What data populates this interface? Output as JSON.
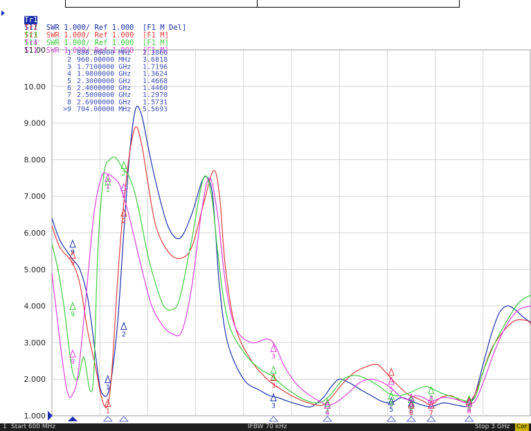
{
  "traces": [
    {
      "id": "Tr1",
      "text": "S11  SWR 1.000/ Ref 1.000  [F1 M Del]",
      "color": "#1a2fa8",
      "active": true
    },
    {
      "id": "Tr2",
      "text": "S11  SWR 1.000/ Ref 1.000  [F1 M]",
      "color": "#e03c3c",
      "active": false
    },
    {
      "id": "Tr3",
      "text": "S11  SWR 1.000/ Ref 1.000  [F1 M]",
      "color": "#3ccd3c",
      "active": false
    },
    {
      "id": "Tr4",
      "text": "S11  SWR 1.000/ Ref 1.000  [F1 M]",
      "color": "#dc3cdc",
      "active": false
    }
  ],
  "status": {
    "channel": "1",
    "start": "Start 600 MHz",
    "ifbw": "IFBW 70 kHz",
    "stop": "Stop 3 GHz",
    "cor": "Cor"
  },
  "chart_data": {
    "type": "line",
    "xlabel": "",
    "ylabel": "",
    "xlim_mhz": [
      600,
      3000
    ],
    "ylim": [
      1.0,
      11.0
    ],
    "yticks": [
      "1.000",
      "2.000",
      "3.000",
      "4.000",
      "5.000",
      "6.000",
      "7.000",
      "8.000",
      "9.000",
      "10.00",
      "11.00"
    ],
    "grid": true,
    "grid_divisions_x": 10,
    "marker_table": [
      {
        "n": "1",
        "freq": "880.00000 MHz",
        "value": "2.1866"
      },
      {
        "n": "2",
        "freq": "960.00000 MHz",
        "value": "3.6818"
      },
      {
        "n": "3",
        "freq": "1.7100000 GHz",
        "value": "1.7196"
      },
      {
        "n": "4",
        "freq": "1.9800000 GHz",
        "value": "1.3624"
      },
      {
        "n": "5",
        "freq": "2.3000000 GHz",
        "value": "1.4668"
      },
      {
        "n": "6",
        "freq": "2.4000000 GHz",
        "value": "1.4460"
      },
      {
        "n": "7",
        "freq": "2.5000000 GHz",
        "value": "1.2970"
      },
      {
        "n": "8",
        "freq": "2.6900000 GHz",
        "value": "1.5731"
      },
      {
        "n": ">9",
        "freq": "704.00000 MHz",
        "value": "5.5693"
      }
    ],
    "series": [
      {
        "color": "#1a2fa8",
        "x": [
          600,
          640,
          700,
          740,
          780,
          820,
          840,
          860,
          880,
          900,
          930,
          960,
          990,
          1020,
          1050,
          1080,
          1120,
          1180,
          1240,
          1300,
          1360,
          1400,
          1420,
          1440,
          1480,
          1560,
          1640,
          1690,
          1730,
          1780,
          1840,
          1900,
          1960,
          2000,
          2040,
          2090,
          2150,
          2200,
          2250,
          2300,
          2350,
          2400,
          2450,
          2500,
          2560,
          2620,
          2670,
          2690,
          2720,
          2760,
          2800,
          2840,
          2880,
          2920,
          2960,
          3000
        ],
        "y": [
          6.4,
          5.8,
          5.3,
          5.0,
          4.2,
          2.6,
          1.8,
          1.55,
          1.6,
          2.1,
          3.6,
          6.0,
          8.2,
          9.4,
          9.2,
          8.4,
          7.4,
          6.2,
          5.85,
          6.5,
          7.5,
          7.2,
          6.0,
          4.5,
          3.0,
          2.0,
          1.7,
          1.55,
          1.5,
          1.4,
          1.3,
          1.25,
          1.5,
          1.8,
          2.0,
          1.9,
          1.7,
          1.55,
          1.4,
          1.35,
          1.5,
          1.4,
          1.3,
          1.25,
          1.35,
          1.3,
          1.25,
          1.3,
          1.6,
          2.4,
          3.2,
          3.8,
          4.0,
          3.9,
          3.7,
          3.55
        ]
      },
      {
        "color": "#e03c3c",
        "x": [
          600,
          640,
          700,
          740,
          780,
          820,
          840,
          860,
          880,
          900,
          930,
          960,
          990,
          1020,
          1050,
          1080,
          1120,
          1180,
          1240,
          1300,
          1360,
          1410,
          1440,
          1470,
          1520,
          1600,
          1660,
          1700,
          1740,
          1800,
          1860,
          1920,
          1960,
          2000,
          2060,
          2120,
          2180,
          2230,
          2270,
          2320,
          2380,
          2420,
          2460,
          2500,
          2550,
          2600,
          2650,
          2690,
          2720,
          2760,
          2800,
          2860,
          2920,
          2980,
          3000
        ],
        "y": [
          6.2,
          5.6,
          5.2,
          4.6,
          3.3,
          2.3,
          1.7,
          1.3,
          1.3,
          2.2,
          4.8,
          6.8,
          8.2,
          8.9,
          8.4,
          7.4,
          6.2,
          5.5,
          5.3,
          5.6,
          6.8,
          7.7,
          7.0,
          5.0,
          3.4,
          2.5,
          2.1,
          1.9,
          1.75,
          1.55,
          1.4,
          1.3,
          1.3,
          1.5,
          1.9,
          2.2,
          2.35,
          2.4,
          2.2,
          1.9,
          1.6,
          1.5,
          1.4,
          1.3,
          1.5,
          1.55,
          1.4,
          1.4,
          1.6,
          2.2,
          2.8,
          3.3,
          3.6,
          3.6,
          3.5
        ]
      },
      {
        "color": "#3ccd3c",
        "x": [
          600,
          630,
          660,
          700,
          730,
          760,
          790,
          810,
          830,
          860,
          890,
          920,
          950,
          980,
          1010,
          1040,
          1080,
          1120,
          1160,
          1200,
          1240,
          1300,
          1360,
          1400,
          1430,
          1460,
          1500,
          1580,
          1650,
          1700,
          1750,
          1800,
          1860,
          1920,
          1960,
          2000,
          2060,
          2120,
          2180,
          2240,
          2290,
          2330,
          2380,
          2420,
          2470,
          2500,
          2560,
          2620,
          2680,
          2720,
          2760,
          2820,
          2880,
          2940,
          3000
        ],
        "y": [
          5.7,
          5.0,
          4.0,
          2.3,
          2.0,
          2.6,
          1.7,
          2.2,
          5.5,
          7.6,
          8.0,
          8.05,
          7.8,
          7.6,
          7.2,
          6.5,
          5.4,
          4.6,
          4.0,
          3.9,
          4.2,
          5.8,
          7.5,
          7.0,
          5.5,
          4.2,
          3.3,
          2.6,
          2.25,
          2.1,
          1.85,
          1.65,
          1.45,
          1.35,
          1.4,
          1.6,
          2.0,
          2.1,
          2.0,
          1.8,
          1.6,
          1.55,
          1.6,
          1.7,
          1.8,
          1.75,
          1.6,
          1.5,
          1.4,
          1.5,
          2.2,
          3.0,
          3.6,
          4.1,
          4.3
        ]
      },
      {
        "color": "#dc3cdc",
        "x": [
          600,
          630,
          660,
          680,
          700,
          730,
          770,
          810,
          850,
          880,
          910,
          940,
          980,
          1020,
          1060,
          1100,
          1150,
          1200,
          1250,
          1300,
          1350,
          1390,
          1430,
          1470,
          1520,
          1600,
          1680,
          1720,
          1760,
          1820,
          1880,
          1940,
          1980,
          2020,
          2080,
          2140,
          2200,
          2260,
          2300,
          2340,
          2380,
          2420,
          2460,
          2500,
          2560,
          2620,
          2680,
          2720,
          2760,
          2820,
          2880,
          2940,
          3000
        ],
        "y": [
          4.9,
          3.5,
          2.2,
          1.6,
          1.55,
          2.1,
          4.2,
          6.5,
          7.55,
          7.6,
          7.5,
          7.3,
          6.6,
          5.7,
          4.8,
          4.0,
          3.5,
          3.25,
          3.3,
          4.5,
          6.6,
          7.5,
          6.5,
          4.6,
          3.4,
          3.0,
          3.1,
          2.9,
          2.4,
          1.9,
          1.6,
          1.4,
          1.3,
          1.35,
          1.6,
          1.9,
          2.0,
          1.9,
          1.75,
          1.55,
          1.45,
          1.55,
          1.5,
          1.4,
          1.5,
          1.45,
          1.35,
          1.4,
          1.9,
          2.8,
          3.5,
          3.9,
          4.0
        ]
      }
    ],
    "markers": [
      {
        "label": "1",
        "color": "#1a2fa8",
        "x": 880,
        "y": 2.0
      },
      {
        "label": "2",
        "color": "#1a2fa8",
        "x": 960,
        "y": 3.45
      },
      {
        "label": "3",
        "color": "#1a2fa8",
        "x": 1710,
        "y": 1.5
      },
      {
        "label": "4",
        "color": "#1a2fa8",
        "x": 1980,
        "y": 1.3
      },
      {
        "label": "5",
        "color": "#1a2fa8",
        "x": 2300,
        "y": 1.4
      },
      {
        "label": "6",
        "color": "#1a2fa8",
        "x": 2400,
        "y": 1.35
      },
      {
        "label": "7",
        "color": "#1a2fa8",
        "x": 2500,
        "y": 1.3
      },
      {
        "label": "8",
        "color": "#1a2fa8",
        "x": 2690,
        "y": 1.4
      },
      {
        "label": "9",
        "color": "#1a2fa8",
        "x": 704,
        "y": 5.7
      },
      {
        "label": "1",
        "color": "#e03c3c",
        "x": 880,
        "y": 1.35
      },
      {
        "label": "2",
        "color": "#e03c3c",
        "x": 960,
        "y": 6.55
      },
      {
        "label": "3",
        "color": "#e03c3c",
        "x": 1710,
        "y": 2.05
      },
      {
        "label": "4",
        "color": "#e03c3c",
        "x": 1980,
        "y": 1.3
      },
      {
        "label": "5",
        "color": "#e03c3c",
        "x": 2300,
        "y": 2.2
      },
      {
        "label": "6",
        "color": "#e03c3c",
        "x": 2400,
        "y": 1.3
      },
      {
        "label": "7",
        "color": "#e03c3c",
        "x": 2500,
        "y": 1.3
      },
      {
        "label": "8",
        "color": "#e03c3c",
        "x": 2690,
        "y": 1.4
      },
      {
        "label": "9",
        "color": "#e03c3c",
        "x": 704,
        "y": 5.4
      },
      {
        "label": "1",
        "color": "#3ccd3c",
        "x": 880,
        "y": 7.4
      },
      {
        "label": "2",
        "color": "#3ccd3c",
        "x": 960,
        "y": 7.85
      },
      {
        "label": "3",
        "color": "#3ccd3c",
        "x": 1710,
        "y": 2.25
      },
      {
        "label": "4",
        "color": "#3ccd3c",
        "x": 1980,
        "y": 1.35
      },
      {
        "label": "5",
        "color": "#3ccd3c",
        "x": 2300,
        "y": 1.55
      },
      {
        "label": "6",
        "color": "#3ccd3c",
        "x": 2400,
        "y": 1.45
      },
      {
        "label": "7",
        "color": "#3ccd3c",
        "x": 2500,
        "y": 1.7
      },
      {
        "label": "8",
        "color": "#3ccd3c",
        "x": 2690,
        "y": 1.45
      },
      {
        "label": "9",
        "color": "#3ccd3c",
        "x": 704,
        "y": 4.0
      },
      {
        "label": "1",
        "color": "#dc3cdc",
        "x": 880,
        "y": 7.5
      },
      {
        "label": "2",
        "color": "#dc3cdc",
        "x": 960,
        "y": 7.25
      },
      {
        "label": "3",
        "color": "#dc3cdc",
        "x": 1710,
        "y": 2.85
      },
      {
        "label": "4",
        "color": "#dc3cdc",
        "x": 1980,
        "y": 1.3
      },
      {
        "label": "5",
        "color": "#dc3cdc",
        "x": 2300,
        "y": 1.95
      },
      {
        "label": "6",
        "color": "#dc3cdc",
        "x": 2400,
        "y": 1.5
      },
      {
        "label": "7",
        "color": "#dc3cdc",
        "x": 2500,
        "y": 1.45
      },
      {
        "label": "8",
        "color": "#dc3cdc",
        "x": 2690,
        "y": 1.35
      },
      {
        "label": "9",
        "color": "#dc3cdc",
        "x": 704,
        "y": 2.7
      }
    ],
    "axis_ticks_x": [
      880,
      960,
      1710,
      1980,
      2300,
      2400,
      2500,
      2690
    ]
  }
}
